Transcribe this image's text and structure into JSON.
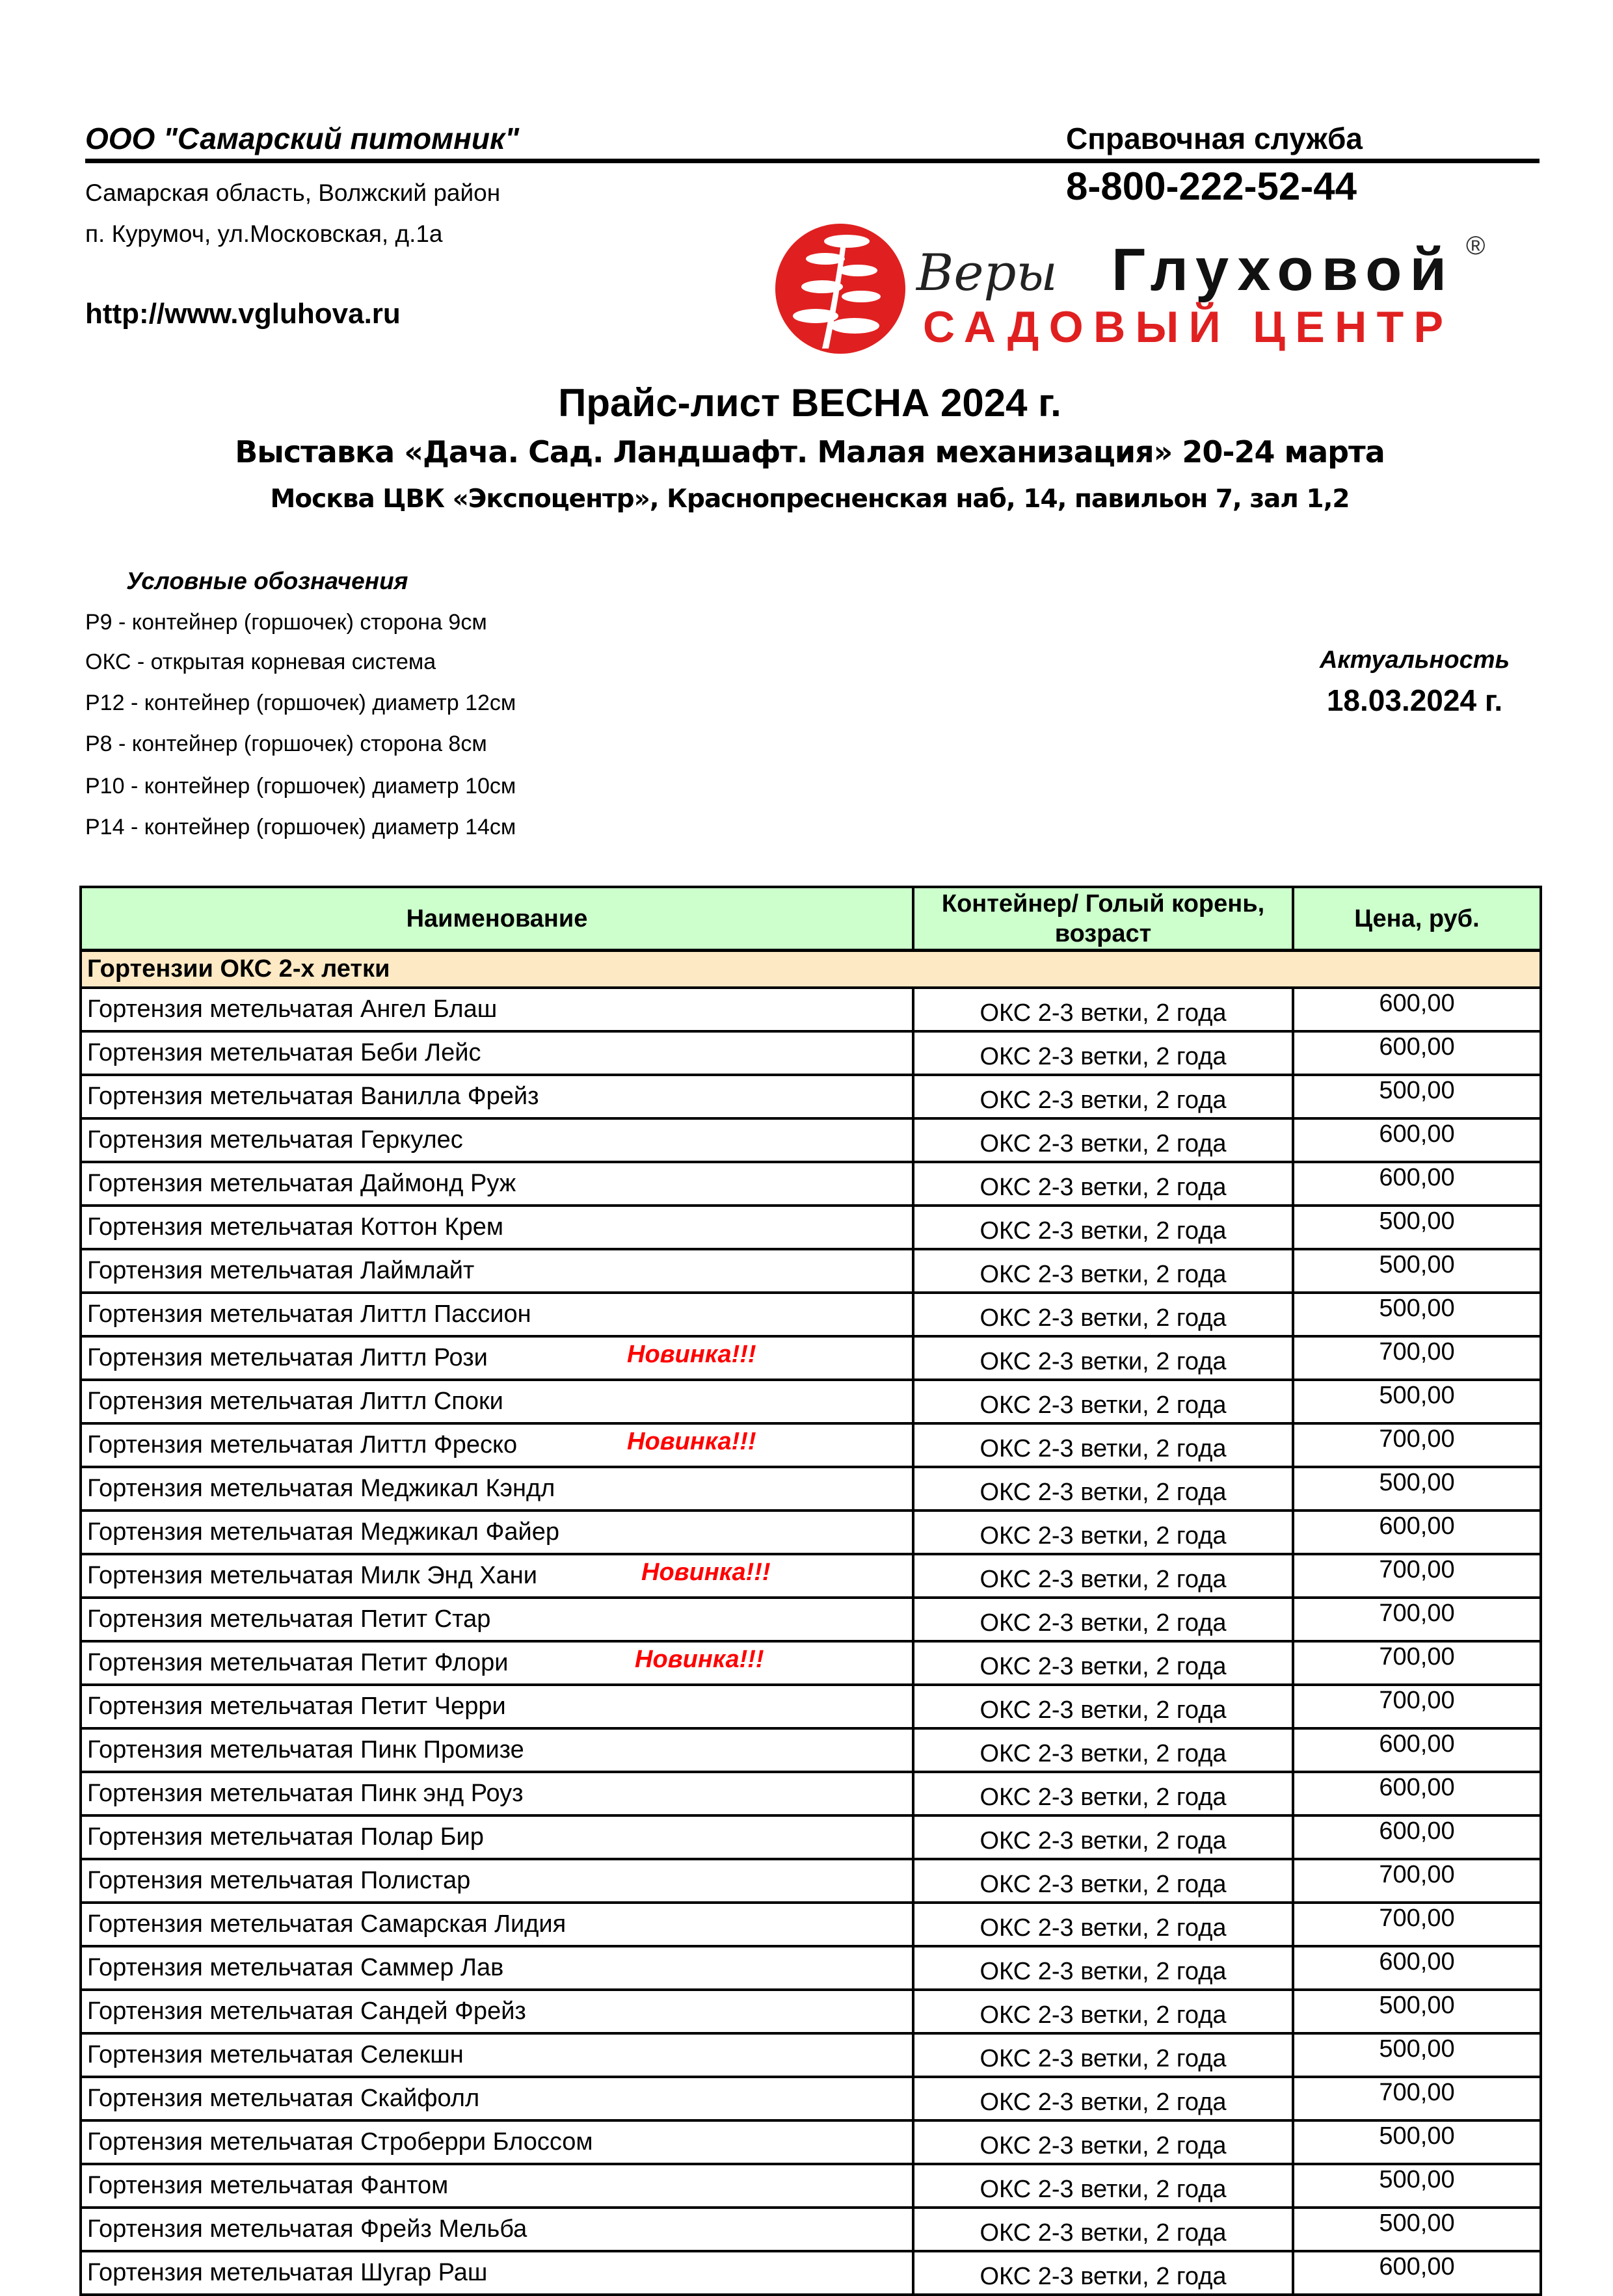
{
  "header": {
    "company": "ООО \"Самарский питомник\"",
    "address_line1": "Самарская область, Волжский район",
    "address_line2": "п. Курумоч, ул.Московская, д.1а",
    "website": "http://www.vgluhova.ru",
    "service_label": "Справочная служба",
    "phone": "8-800-222-52-44",
    "logo": {
      "script": "Веры",
      "name": "Глуховой",
      "tagline": "САДОВЫЙ ЦЕНТР",
      "mark": "®",
      "brand_color": "#e02020"
    }
  },
  "title": "Прайс-лист ВЕСНА 2024 г.",
  "subtitle": "Выставка «Дача. Сад. Ландшафт. Малая механизация» 20-24 марта",
  "location": "Москва  ЦВК «Экспоцентр», Краснопресненская наб, 14, павильон 7, зал 1,2",
  "legend": {
    "heading": "Условные обозначения",
    "items": [
      "Р9 - контейнер (горшочек) сторона 9см",
      "ОКС - открытая корневая система",
      "Р12 - контейнер (горшочек) диаметр 12см",
      "Р8 - контейнер (горшочек) сторона 8см",
      "Р10 - контейнер (горшочек) диаметр 10см",
      "Р14 - контейнер (горшочек) диаметр 14см"
    ]
  },
  "actuality": {
    "label": "Актуальность",
    "date": "18.03.2024 г."
  },
  "table": {
    "columns": [
      "Наименование",
      "Контейнер/ Голый корень, возраст",
      "Цена, руб."
    ],
    "category": "Гортензии ОКС 2-х летки",
    "new_badge": "Новинка!!!",
    "colors": {
      "header_bg": "#ccffcc",
      "category_bg": "#fde9c4",
      "badge": "#ff0000"
    },
    "rows": [
      {
        "name": "Гортензия метельчатая Ангел Блаш",
        "container": "ОКС 2-3 ветки, 2 года",
        "price": "600,00",
        "new": false
      },
      {
        "name": "Гортензия метельчатая Беби Лейс",
        "container": "ОКС 2-3 ветки, 2 года",
        "price": "600,00",
        "new": false
      },
      {
        "name": "Гортензия метельчатая Ванилла Фрейз",
        "container": "ОКС 2-3 ветки, 2 года",
        "price": "500,00",
        "new": false
      },
      {
        "name": "Гортензия метельчатая Геркулес",
        "container": "ОКС 2-3 ветки, 2 года",
        "price": "600,00",
        "new": false
      },
      {
        "name": "Гортензия метельчатая Даймонд Руж",
        "container": "ОКС 2-3 ветки, 2 года",
        "price": "600,00",
        "new": false
      },
      {
        "name": "Гортензия метельчатая Коттон Крем",
        "container": "ОКС 2-3 ветки, 2 года",
        "price": "500,00",
        "new": false
      },
      {
        "name": "Гортензия метельчатая Лаймлайт",
        "container": "ОКС 2-3 ветки, 2 года",
        "price": "500,00",
        "new": false
      },
      {
        "name": "Гортензия метельчатая Литтл Пассион",
        "container": "ОКС 2-3 ветки, 2 года",
        "price": "500,00",
        "new": false
      },
      {
        "name": "Гортензия метельчатая Литтл Рози",
        "container": "ОКС 2-3 ветки, 2 года",
        "price": "700,00",
        "new": true
      },
      {
        "name": "Гортензия метельчатая Литтл Споки",
        "container": "ОКС 2-3 ветки, 2 года",
        "price": "500,00",
        "new": false
      },
      {
        "name": "Гортензия метельчатая Литтл Фреско",
        "container": "ОКС 2-3 ветки, 2 года",
        "price": "700,00",
        "new": true
      },
      {
        "name": "Гортензия метельчатая Меджикал Кэндл",
        "container": "ОКС 2-3 ветки, 2 года",
        "price": "500,00",
        "new": false
      },
      {
        "name": "Гортензия метельчатая Меджикал Файер",
        "container": "ОКС 2-3 ветки, 2 года",
        "price": "600,00",
        "new": false
      },
      {
        "name": "Гортензия метельчатая Милк Энд Хани",
        "container": "ОКС 2-3 ветки, 2 года",
        "price": "700,00",
        "new": true
      },
      {
        "name": "Гортензия метельчатая Петит Стар",
        "container": "ОКС 2-3 ветки, 2 года",
        "price": "700,00",
        "new": false
      },
      {
        "name": "Гортензия метельчатая Петит Флори",
        "container": "ОКС 2-3 ветки, 2 года",
        "price": "700,00",
        "new": true
      },
      {
        "name": "Гортензия метельчатая Петит Черри",
        "container": "ОКС 2-3 ветки, 2 года",
        "price": "700,00",
        "new": false
      },
      {
        "name": "Гортензия метельчатая Пинк Промизе",
        "container": "ОКС 2-3 ветки, 2 года",
        "price": "600,00",
        "new": false
      },
      {
        "name": "Гортензия метельчатая Пинк энд Роуз",
        "container": "ОКС 2-3 ветки, 2 года",
        "price": "600,00",
        "new": false
      },
      {
        "name": "Гортензия метельчатая Полар Бир",
        "container": "ОКС 2-3 ветки, 2 года",
        "price": "600,00",
        "new": false
      },
      {
        "name": "Гортензия метельчатая Полистар",
        "container": "ОКС 2-3 ветки, 2 года",
        "price": "700,00",
        "new": false
      },
      {
        "name": "Гортензия метельчатая Самарская Лидия",
        "container": "ОКС 2-3 ветки, 2 года",
        "price": "700,00",
        "new": false
      },
      {
        "name": "Гортензия метельчатая Саммер Лав",
        "container": "ОКС 2-3 ветки, 2 года",
        "price": "600,00",
        "new": false
      },
      {
        "name": "Гортензия метельчатая Сандей Фрейз",
        "container": "ОКС 2-3 ветки, 2 года",
        "price": "500,00",
        "new": false
      },
      {
        "name": "Гортензия метельчатая Селекшн",
        "container": "ОКС 2-3 ветки, 2 года",
        "price": "500,00",
        "new": false
      },
      {
        "name": "Гортензия метельчатая Скайфолл",
        "container": "ОКС 2-3 ветки, 2 года",
        "price": "700,00",
        "new": false
      },
      {
        "name": "Гортензия метельчатая Строберри Блоссом",
        "container": "ОКС 2-3 ветки, 2 года",
        "price": "500,00",
        "new": false
      },
      {
        "name": "Гортензия метельчатая Фантом",
        "container": "ОКС 2-3 ветки, 2 года",
        "price": "500,00",
        "new": false
      },
      {
        "name": "Гортензия метельчатая Фрейз Мельба",
        "container": "ОКС 2-3 ветки, 2 года",
        "price": "500,00",
        "new": false
      },
      {
        "name": "Гортензия метельчатая Шугар Раш",
        "container": "ОКС 2-3 ветки, 2 года",
        "price": "600,00",
        "new": false
      }
    ]
  }
}
